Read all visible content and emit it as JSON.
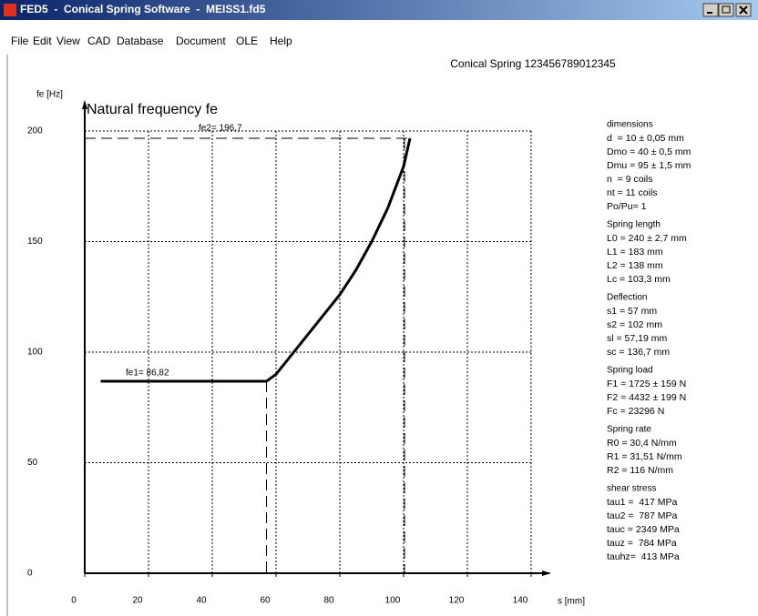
{
  "window": {
    "title": "FED5  -  Conical Spring Software  -  MEISS1.fd5",
    "menu": [
      "File",
      "Edit",
      "View",
      "CAD",
      "Database",
      "Document",
      "OLE",
      "Help"
    ]
  },
  "header": "Conical Spring 123456789012345",
  "chart_data": {
    "type": "line",
    "title": "Natural frequency fe",
    "x_label": "s [mm]",
    "y_label": "fe [Hz]",
    "x": [
      5,
      57,
      60,
      65,
      70,
      75,
      80,
      85,
      90,
      95,
      100,
      102
    ],
    "series": [
      {
        "name": "fe",
        "color": "#000000",
        "values": [
          86.82,
          86.82,
          90,
          99,
          108,
          117,
          126,
          137,
          150,
          165,
          184,
          196.7
        ]
      }
    ],
    "annotations": [
      "fe1= 86,82",
      "fe2= 196,7"
    ],
    "xlim": [
      0,
      140
    ],
    "ylim": [
      0,
      200
    ],
    "xticks": [
      0,
      20,
      40,
      60,
      80,
      100,
      120,
      140
    ],
    "yticks": [
      0,
      50,
      100,
      150,
      200
    ],
    "grid": true
  },
  "panel": [
    {
      "heading": "dimensions",
      "lines": [
        "d  = 10 ± 0,05 mm",
        "Dmo = 40 ± 0,5 mm",
        "Dmu = 95 ± 1,5 mm",
        "n  = 9 coils",
        "nt = 11 coils",
        "Po/Pu= 1"
      ]
    },
    {
      "heading": "Spring length",
      "lines": [
        "L0 = 240 ± 2,7 mm",
        "L1 = 183 mm",
        "L2 = 138 mm",
        "Lc = 103,3 mm"
      ]
    },
    {
      "heading": "Deflection",
      "lines": [
        "s1 = 57 mm",
        "s2 = 102 mm",
        "sl = 57,19 mm",
        "sc = 136,7 mm"
      ]
    },
    {
      "heading": "Spring load",
      "lines": [
        "F1 = 1725 ± 159 N",
        "F2 = 4432 ± 199 N",
        "Fc = 23296 N"
      ]
    },
    {
      "heading": "Spring rate",
      "lines": [
        "R0 = 30,4 N/mm",
        "R1 = 31,51 N/mm",
        "R2 = 116 N/mm"
      ]
    },
    {
      "heading": "shear stress",
      "lines": [
        "tau1 =  417 MPa",
        "tau2 =  787 MPa",
        "tauc = 2349 MPa",
        "tauz =  784 MPa",
        "tauhz=  413 MPa"
      ]
    }
  ]
}
